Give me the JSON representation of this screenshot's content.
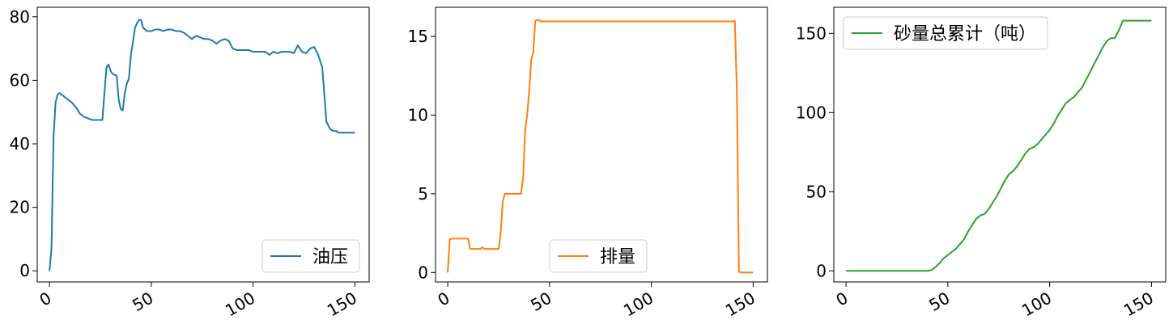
{
  "chart_data": [
    {
      "type": "line",
      "xlim": [
        -6,
        157
      ],
      "ylim": [
        -3.5,
        83
      ],
      "xticks": [
        0,
        50,
        100,
        150
      ],
      "yticks": [
        0,
        20,
        40,
        60,
        80
      ],
      "legend_placement": "lower-right",
      "grid": false,
      "series": [
        {
          "name": "油压",
          "color": "#1f77b4",
          "x": [
            0,
            1,
            2,
            3,
            4,
            5,
            7,
            9,
            11,
            13,
            15,
            17,
            19,
            21,
            23,
            25,
            26,
            27,
            28,
            29,
            30,
            31,
            33,
            34,
            35,
            36,
            37,
            38,
            39,
            40,
            41,
            42,
            43,
            44,
            45,
            46,
            48,
            50,
            52,
            54,
            56,
            58,
            60,
            62,
            64,
            66,
            68,
            70,
            71,
            72,
            74,
            76,
            78,
            80,
            82,
            84,
            86,
            88,
            90,
            92,
            94,
            95,
            96,
            98,
            100,
            104,
            106,
            108,
            110,
            112,
            114,
            116,
            118,
            120,
            122,
            124,
            126,
            128,
            130,
            132,
            134,
            136,
            138,
            140,
            141,
            142,
            143,
            144,
            145,
            146,
            148,
            150
          ],
          "y": [
            0,
            7,
            42,
            53,
            55.5,
            56,
            55,
            54,
            53,
            51.5,
            49.5,
            48.5,
            48,
            47.5,
            47.5,
            47.5,
            47.5,
            56,
            64,
            65,
            63,
            62,
            61.5,
            54,
            51,
            50.5,
            56,
            59,
            60.5,
            68,
            72,
            76.5,
            78,
            79,
            79,
            76.5,
            75.5,
            75.5,
            76,
            76,
            75.5,
            76,
            76,
            75.5,
            75.5,
            75,
            74,
            73,
            73.5,
            74,
            73.5,
            73,
            73,
            72.5,
            71.5,
            72.5,
            73,
            72.5,
            70,
            69.5,
            69.5,
            69.5,
            69.5,
            69.5,
            69,
            69,
            69,
            68,
            69,
            68.5,
            69,
            69,
            69,
            68.5,
            71,
            69,
            68.5,
            70,
            70.5,
            68,
            64,
            47,
            44.5,
            44,
            44,
            43.5,
            43.5,
            43.5,
            43.5,
            43.5,
            43.5,
            43.5
          ]
        }
      ]
    },
    {
      "type": "line",
      "xlim": [
        -6,
        157
      ],
      "ylim": [
        -0.6,
        16.85
      ],
      "xticks": [
        0,
        50,
        100,
        150
      ],
      "yticks": [
        0,
        5,
        10,
        15
      ],
      "legend_placement": "lower-center",
      "grid": false,
      "series": [
        {
          "name": "排量",
          "color": "#ff7f0e",
          "x": [
            0,
            1,
            2,
            4,
            6,
            8,
            9,
            10,
            11,
            13,
            15,
            16,
            17,
            18,
            19,
            20,
            22,
            24,
            25,
            26,
            27,
            28,
            29,
            30,
            31,
            32,
            33,
            34,
            35,
            36,
            37,
            38,
            39,
            40,
            41,
            42,
            43,
            44,
            46,
            50,
            60,
            80,
            100,
            120,
            130,
            139,
            140,
            141,
            142,
            143,
            144,
            146,
            148,
            150
          ],
          "y": [
            0,
            2.1,
            2.15,
            2.15,
            2.15,
            2.15,
            2.15,
            2.15,
            1.5,
            1.5,
            1.5,
            1.5,
            1.6,
            1.5,
            1.5,
            1.5,
            1.5,
            1.5,
            1.5,
            2.5,
            4.5,
            5,
            5,
            5,
            5,
            5,
            5,
            5,
            5,
            5,
            6,
            9,
            10,
            11.5,
            13.5,
            14,
            16,
            16.05,
            15.95,
            15.95,
            15.95,
            15.95,
            15.95,
            15.95,
            15.95,
            15.95,
            15.95,
            16,
            11.5,
            0.05,
            0,
            0,
            0,
            0
          ]
        }
      ]
    },
    {
      "type": "line",
      "xlim": [
        -6,
        157
      ],
      "ylim": [
        -7,
        166.5
      ],
      "xticks": [
        0,
        50,
        100,
        150
      ],
      "yticks": [
        0,
        50,
        100,
        150
      ],
      "legend_placement": "upper-left",
      "grid": false,
      "series": [
        {
          "name": "砂量总累计（吨）",
          "color": "#2ca02c",
          "x": [
            0,
            10,
            20,
            30,
            40,
            42,
            44,
            46,
            48,
            50,
            52,
            54,
            56,
            58,
            60,
            62,
            64,
            66,
            68,
            70,
            72,
            74,
            76,
            78,
            80,
            82,
            84,
            86,
            88,
            90,
            92,
            94,
            96,
            98,
            100,
            102,
            104,
            106,
            108,
            110,
            112,
            114,
            116,
            118,
            120,
            122,
            124,
            126,
            128,
            130,
            132,
            134,
            136,
            140,
            145,
            150
          ],
          "y": [
            0,
            0,
            0,
            0,
            0,
            0.5,
            2.5,
            5,
            8,
            10,
            12,
            14,
            17,
            20,
            25,
            29,
            33,
            35,
            36,
            39,
            43,
            47,
            52,
            57,
            61,
            63,
            66,
            70,
            74,
            77,
            78,
            80,
            83,
            86,
            89,
            93,
            98,
            102,
            106,
            108,
            110,
            113,
            116,
            121,
            126,
            131,
            136,
            141,
            145,
            147,
            147,
            152,
            158,
            158,
            158,
            158
          ]
        }
      ]
    }
  ]
}
